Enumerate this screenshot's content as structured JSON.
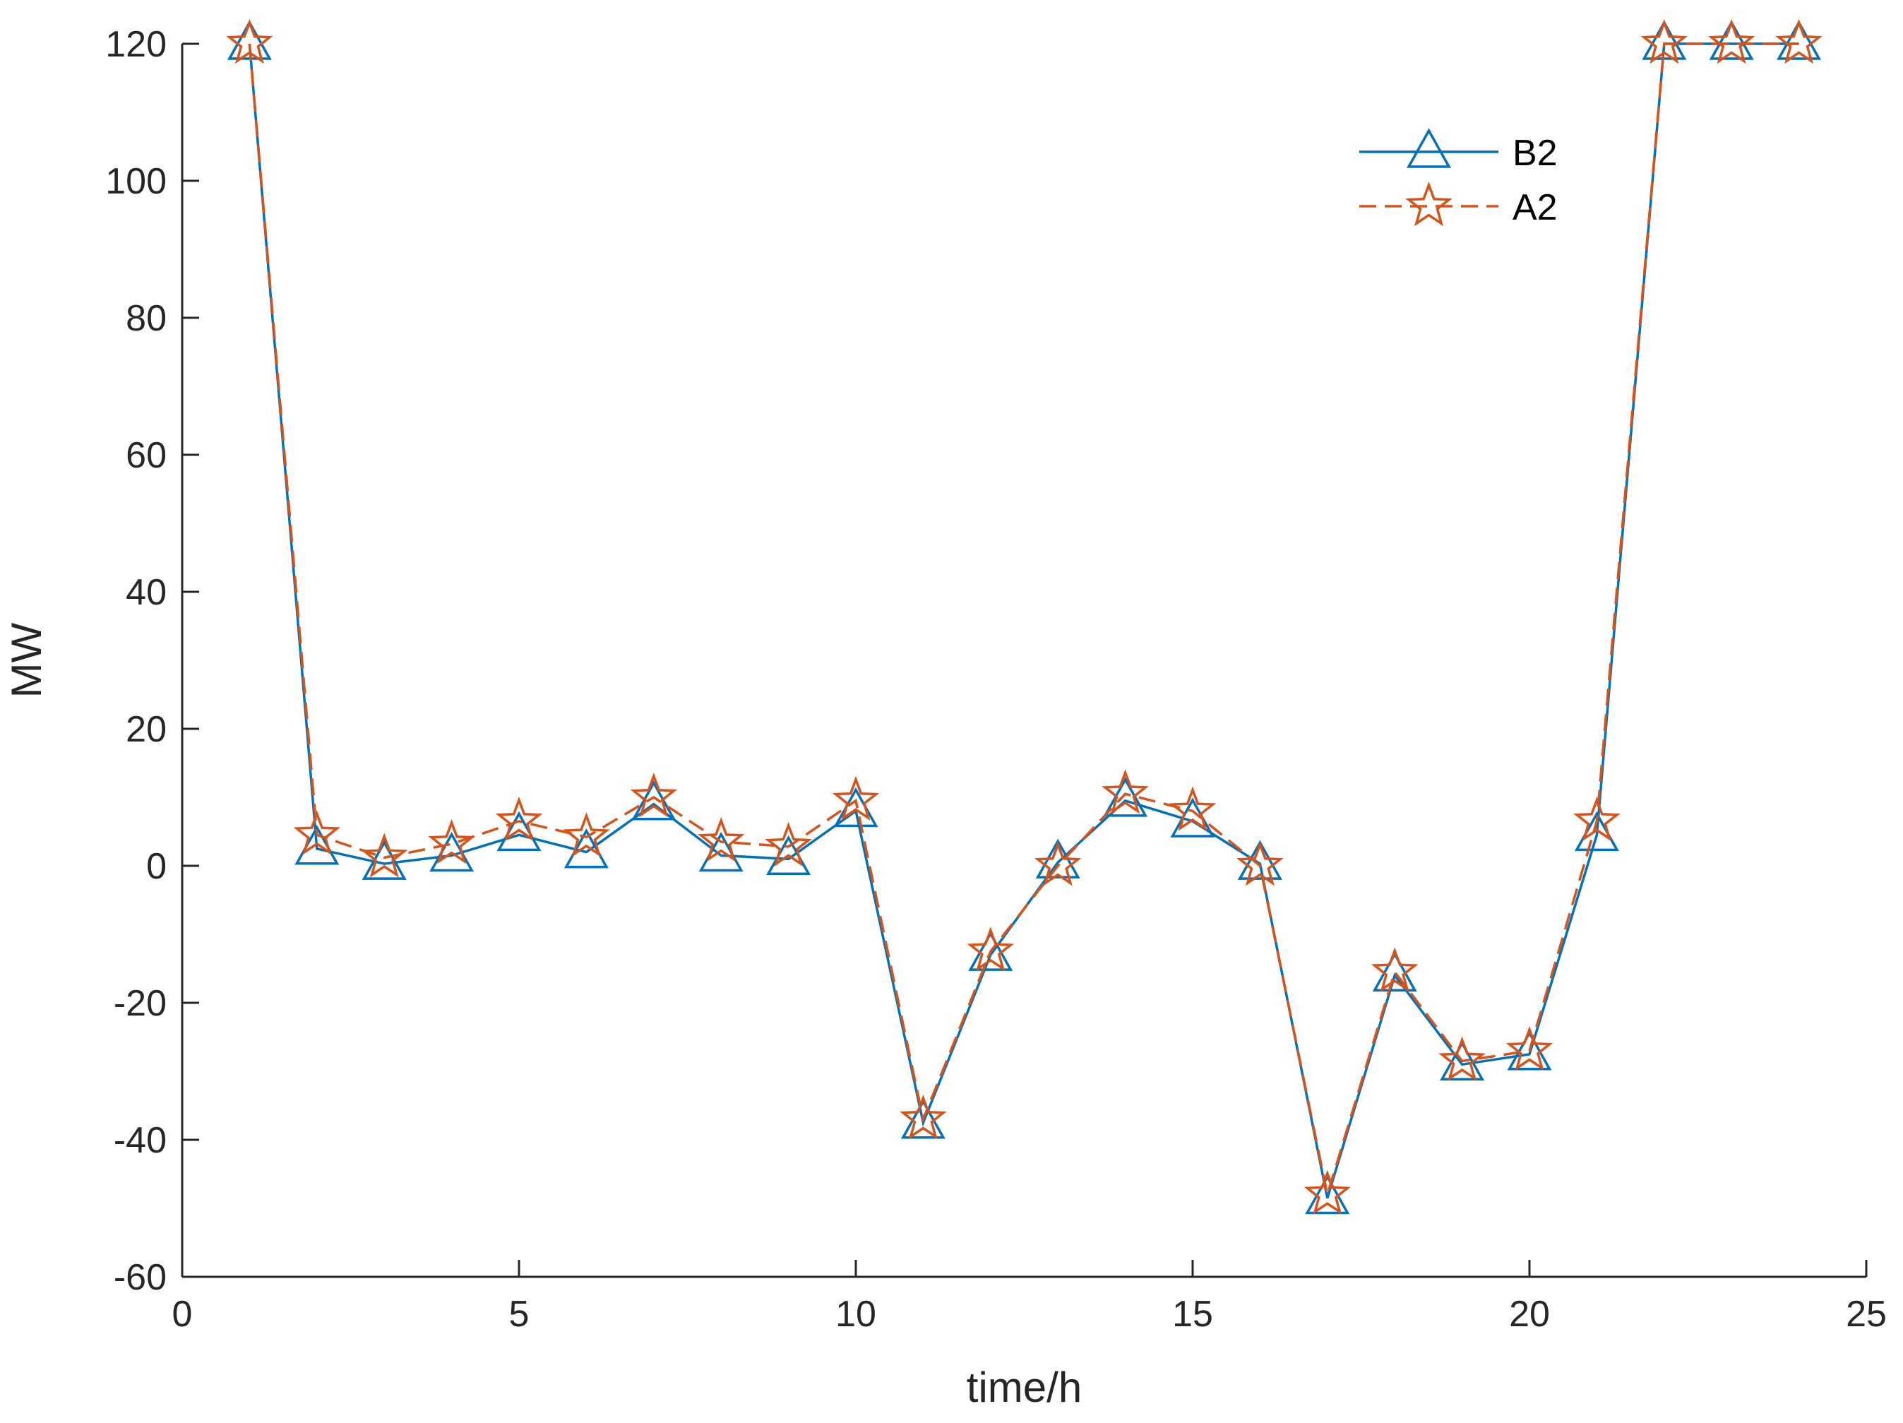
{
  "chart_data": {
    "type": "line",
    "title": "",
    "xlabel": "time/h",
    "ylabel": "MW",
    "xlim": [
      0,
      25
    ],
    "ylim": [
      -60,
      120
    ],
    "xticks": [
      0,
      5,
      10,
      15,
      20,
      25
    ],
    "yticks": [
      -60,
      -40,
      -20,
      0,
      20,
      40,
      60,
      80,
      100,
      120
    ],
    "grid": false,
    "legend_position": "top-right",
    "x": [
      1,
      2,
      3,
      4,
      5,
      6,
      7,
      8,
      9,
      10,
      11,
      12,
      13,
      14,
      15,
      16,
      17,
      18,
      19,
      20,
      21,
      22,
      23,
      24
    ],
    "series": [
      {
        "name": "B2",
        "color": "#0072BD",
        "line": "solid",
        "marker": "triangle",
        "values": [
          120,
          2.5,
          0.3,
          1.5,
          4.5,
          2.0,
          9.0,
          1.5,
          1.0,
          8.0,
          -37.5,
          -13.0,
          0.5,
          9.5,
          6.5,
          0.3,
          -48.5,
          -16.0,
          -29.0,
          -27.5,
          4.5,
          120,
          120,
          120
        ]
      },
      {
        "name": "A2",
        "color": "#D95319",
        "line": "dashed",
        "marker": "star",
        "values": [
          120,
          4.5,
          1.2,
          3.2,
          6.5,
          4.2,
          10.0,
          3.5,
          2.8,
          9.5,
          -37.0,
          -12.5,
          0.0,
          10.5,
          8.0,
          0.0,
          -48.0,
          -15.5,
          -28.5,
          -27.0,
          6.5,
          120,
          120,
          120
        ]
      }
    ]
  }
}
